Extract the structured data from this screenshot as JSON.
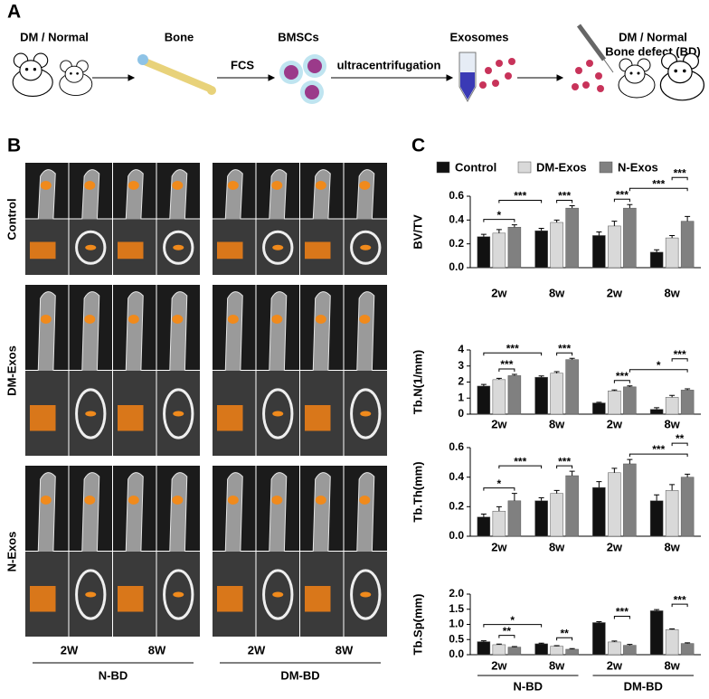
{
  "panel_a": {
    "label": "A",
    "source": "DM / Normal",
    "bone": "Bone",
    "cells": "BMSCs",
    "exosomes": "Exosomes",
    "step_fcs": "FCS",
    "step_uc": "ultracentrifugation",
    "target_line1": "DM / Normal",
    "target_line2": "Bone defect (BD)"
  },
  "panel_b": {
    "label": "B",
    "rows": [
      "Control",
      "DM-Exos",
      "N-Exos"
    ],
    "columns": [
      "2W",
      "8W",
      "2W",
      "8W"
    ],
    "groups": [
      "N-BD",
      "DM-BD"
    ]
  },
  "panel_c": {
    "label": "C"
  },
  "chart_data": [
    {
      "type": "bar",
      "ylabel": "BV/TV",
      "categories": [
        "2w",
        "8w",
        "2w",
        "8w"
      ],
      "legend": "top",
      "ylim": [
        0,
        0.6
      ],
      "yticks": [
        {
          "value": 0,
          "label": "0.0"
        },
        0.2,
        0.4,
        0.6
      ],
      "series": [
        {
          "name": "Control",
          "color": "#111111",
          "values": [
            0.26,
            0.31,
            0.27,
            0.13
          ],
          "errors": [
            0.02,
            0.02,
            0.03,
            0.02
          ]
        },
        {
          "name": "DM-Exos",
          "color": "#d9d9d9",
          "values": [
            0.29,
            0.38,
            0.35,
            0.25
          ],
          "errors": [
            0.03,
            0.02,
            0.04,
            0.02
          ]
        },
        {
          "name": "N-Exos",
          "color": "#808080",
          "values": [
            0.34,
            0.5,
            0.5,
            0.39
          ],
          "errors": [
            0.02,
            0.02,
            0.03,
            0.04
          ]
        }
      ],
      "annotations": [
        {
          "label": "*",
          "from": [
            0,
            0
          ],
          "to": [
            0,
            2
          ]
        },
        {
          "label": "***",
          "from": [
            0,
            1
          ],
          "to": [
            1,
            0
          ]
        },
        {
          "label": "***",
          "from": [
            1,
            1
          ],
          "to": [
            1,
            2
          ]
        },
        {
          "label": "***",
          "from": [
            2,
            1
          ],
          "to": [
            2,
            2
          ]
        },
        {
          "label": "***",
          "from": [
            2,
            2
          ],
          "to": [
            3,
            2
          ]
        },
        {
          "label": "***",
          "from": [
            3,
            1
          ],
          "to": [
            3,
            2
          ]
        }
      ]
    },
    {
      "type": "bar",
      "ylabel": "Tb.N(1/mm)",
      "categories": [
        "2w",
        "8w",
        "2w",
        "8w"
      ],
      "ylim": [
        0,
        4
      ],
      "yticks": [
        0,
        1,
        2,
        3,
        4
      ],
      "series": [
        {
          "color": "#111111",
          "values": [
            1.75,
            2.3,
            0.7,
            0.3
          ],
          "errors": [
            0.1,
            0.08,
            0.04,
            0.1
          ]
        },
        {
          "color": "#d9d9d9",
          "values": [
            2.15,
            2.55,
            1.45,
            1.05
          ],
          "errors": [
            0.08,
            0.1,
            0.06,
            0.12
          ]
        },
        {
          "color": "#808080",
          "values": [
            2.4,
            3.4,
            1.7,
            1.5
          ],
          "errors": [
            0.08,
            0.08,
            0.06,
            0.08
          ]
        }
      ],
      "annotations": [
        {
          "label": "***",
          "from": [
            0,
            1
          ],
          "to": [
            0,
            2
          ]
        },
        {
          "label": "***",
          "from": [
            0,
            0
          ],
          "to": [
            1,
            0
          ]
        },
        {
          "label": "***",
          "from": [
            1,
            1
          ],
          "to": [
            1,
            2
          ]
        },
        {
          "label": "***",
          "from": [
            2,
            1
          ],
          "to": [
            2,
            2
          ]
        },
        {
          "label": "*",
          "from": [
            2,
            2
          ],
          "to": [
            3,
            2
          ]
        },
        {
          "label": "***",
          "from": [
            3,
            1
          ],
          "to": [
            3,
            2
          ]
        }
      ]
    },
    {
      "type": "bar",
      "ylabel": "Tb.Th(mm)",
      "categories": [
        "2w",
        "8w",
        "2w",
        "8w"
      ],
      "ylim": [
        0,
        0.6
      ],
      "yticks": [
        {
          "value": 0,
          "label": "0.0"
        },
        0.2,
        0.4,
        0.6
      ],
      "series": [
        {
          "color": "#111111",
          "values": [
            0.13,
            0.24,
            0.33,
            0.24
          ],
          "errors": [
            0.02,
            0.02,
            0.04,
            0.04
          ]
        },
        {
          "color": "#d9d9d9",
          "values": [
            0.17,
            0.29,
            0.43,
            0.31
          ],
          "errors": [
            0.03,
            0.02,
            0.03,
            0.04
          ]
        },
        {
          "color": "#808080",
          "values": [
            0.24,
            0.41,
            0.49,
            0.4
          ],
          "errors": [
            0.05,
            0.03,
            0.03,
            0.02
          ]
        }
      ],
      "annotations": [
        {
          "label": "*",
          "from": [
            0,
            0
          ],
          "to": [
            0,
            2
          ]
        },
        {
          "label": "***",
          "from": [
            0,
            1
          ],
          "to": [
            1,
            0
          ]
        },
        {
          "label": "***",
          "from": [
            1,
            1
          ],
          "to": [
            1,
            2
          ]
        },
        {
          "label": "***",
          "from": [
            2,
            2
          ],
          "to": [
            3,
            2
          ]
        },
        {
          "label": "**",
          "from": [
            3,
            1
          ],
          "to": [
            3,
            2
          ]
        }
      ]
    },
    {
      "type": "bar",
      "ylabel": "Tb.Sp(mm)",
      "categories": [
        "2w",
        "8w",
        "2w",
        "8w"
      ],
      "group_labels": [
        "N-BD",
        "DM-BD"
      ],
      "ylim": [
        0,
        2
      ],
      "yticks": [
        {
          "value": 0,
          "label": "0.0"
        },
        0.5,
        {
          "value": 1,
          "label": "1.0"
        },
        1.5,
        {
          "value": 2,
          "label": "2.0"
        }
      ],
      "series": [
        {
          "color": "#111111",
          "values": [
            0.43,
            0.36,
            1.06,
            1.45
          ],
          "errors": [
            0.03,
            0.02,
            0.03,
            0.04
          ]
        },
        {
          "color": "#d9d9d9",
          "values": [
            0.33,
            0.28,
            0.42,
            0.83
          ],
          "errors": [
            0.02,
            0.02,
            0.03,
            0.02
          ]
        },
        {
          "color": "#808080",
          "values": [
            0.25,
            0.18,
            0.31,
            0.37
          ],
          "errors": [
            0.02,
            0.02,
            0.03,
            0.02
          ]
        }
      ],
      "annotations": [
        {
          "label": "**",
          "from": [
            0,
            1
          ],
          "to": [
            0,
            2
          ]
        },
        {
          "label": "*",
          "from": [
            0,
            0
          ],
          "to": [
            1,
            0
          ]
        },
        {
          "label": "**",
          "from": [
            1,
            1
          ],
          "to": [
            1,
            2
          ]
        },
        {
          "label": "***",
          "from": [
            2,
            1
          ],
          "to": [
            2,
            2
          ]
        },
        {
          "label": "***",
          "from": [
            3,
            1
          ],
          "to": [
            3,
            2
          ]
        }
      ]
    }
  ]
}
